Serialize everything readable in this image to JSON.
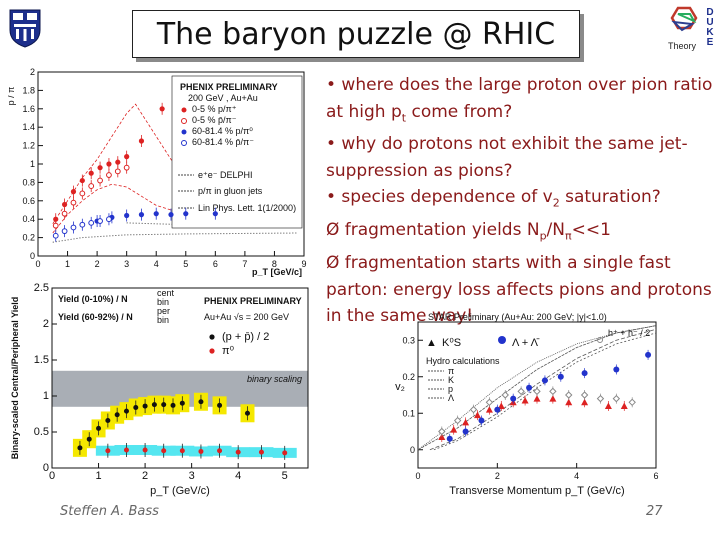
{
  "slide": {
    "title": "The baryon puzzle @ RHIC",
    "author": "Steffen A. Bass",
    "page": "27",
    "duke_letters": [
      "D",
      "U",
      "K",
      "E"
    ],
    "theory_label": "Theory"
  },
  "bullets": [
    {
      "marker": "•",
      "pre": " where does the large proton over pion ratio at high p",
      "sub": "t",
      "post": " come from?"
    },
    {
      "marker": "•",
      "pre": " why do protons not exhibit the same jet- suppression as pions?",
      "sub": "",
      "post": ""
    },
    {
      "marker": "•",
      "pre": " species dependence of v",
      "sub": "2",
      "post": " saturation?"
    },
    {
      "marker": "Ø",
      "pre": " fragmentation yields N",
      "sub": "p",
      "post": "/N",
      "sub2": "π",
      "post2": "<<1"
    },
    {
      "marker": "Ø",
      "pre": " fragmentation starts with a single fast parton: energy loss affects pions and protons in the same way!",
      "sub": "",
      "post": ""
    }
  ],
  "colors": {
    "bullet_text": "#8a1a1a",
    "red": "#dd2222",
    "blue": "#2233cc",
    "yellow": "#f5e800",
    "cyan": "#55e6f0",
    "grey_band": "#a9aeb5"
  },
  "chart_data": [
    {
      "type": "scatter",
      "ylabel": "p / π",
      "xlabel": "p_T [GeV/c]",
      "xlim": [
        0,
        9
      ],
      "ylim": [
        0,
        2
      ],
      "xticks": [
        "0",
        "1",
        "2",
        "3",
        "4",
        "5",
        "6",
        "7",
        "8",
        "9"
      ],
      "yticks": [
        "0",
        "0.2",
        "0.4",
        "0.6",
        "0.8",
        "1",
        "1.2",
        "1.4",
        "1.6",
        "1.8",
        "2"
      ],
      "legend_title": "PHENIX PRELIMINARY",
      "legend_sub": "200 GeV , Au+Au",
      "series": [
        {
          "name": "0-5 %  p/π⁺",
          "color": "#dd2222",
          "x": [
            0.6,
            0.9,
            1.2,
            1.5,
            1.8,
            2.1,
            2.4,
            2.7,
            3.0,
            3.5,
            4.2
          ],
          "y": [
            0.4,
            0.56,
            0.7,
            0.82,
            0.9,
            0.96,
            1.0,
            1.02,
            1.08,
            1.25,
            1.6
          ]
        },
        {
          "name": "0-5 %  p̄/π⁻",
          "color": "#dd2222",
          "x": [
            0.6,
            0.9,
            1.2,
            1.5,
            1.8,
            2.1,
            2.4,
            2.7,
            3.0
          ],
          "y": [
            0.33,
            0.46,
            0.58,
            0.68,
            0.76,
            0.82,
            0.88,
            0.92,
            0.96
          ]
        },
        {
          "name": "60-81.4 % p/π⁰",
          "color": "#2233cc",
          "x": [
            2.0,
            2.5,
            3.0,
            3.5,
            4.0,
            4.5,
            5.0,
            6.0
          ],
          "y": [
            0.38,
            0.42,
            0.44,
            0.45,
            0.46,
            0.45,
            0.46,
            0.46
          ]
        },
        {
          "name": "60-81.4 % p̄/π⁻",
          "color": "#2233cc",
          "x": [
            0.6,
            0.9,
            1.2,
            1.5,
            1.8,
            2.1,
            2.4
          ],
          "y": [
            0.22,
            0.27,
            0.31,
            0.34,
            0.36,
            0.38,
            0.4
          ]
        }
      ],
      "annotations": [
        "e⁺e⁻ DELPHI",
        "p/π in gluon jets",
        "Lin Phys. Lett. 1(1/2000)"
      ]
    },
    {
      "type": "scatter",
      "ylabel": "Binary-scaled Central/Peripheral Yield",
      "xlabel": "p_T (GeV/c)",
      "xlim": [
        0,
        5.5
      ],
      "ylim": [
        0,
        2.5
      ],
      "xticks": [
        "0",
        "1",
        "2",
        "3",
        "4",
        "5"
      ],
      "yticks": [
        "0",
        "0.5",
        "1",
        "1.5",
        "2",
        "2.5"
      ],
      "legend_lines": [
        "Yield (0-10%) / N",
        "Yield (60-92%) / N"
      ],
      "legend_sup": [
        "cent",
        "per"
      ],
      "legend_sub": "bin",
      "experiment": "PHENIX PRELIMINARY",
      "system": "Au+Au √s = 200 GeV",
      "band_label": "binary scaling",
      "band": [
        0.85,
        1.35
      ],
      "series": [
        {
          "name": "(p + p̄) / 2",
          "color": "#111111",
          "x": [
            0.6,
            0.8,
            1.0,
            1.2,
            1.4,
            1.6,
            1.8,
            2.0,
            2.2,
            2.4,
            2.6,
            2.8,
            3.2,
            3.6,
            4.2
          ],
          "y": [
            0.28,
            0.4,
            0.55,
            0.66,
            0.74,
            0.79,
            0.84,
            0.86,
            0.88,
            0.88,
            0.87,
            0.9,
            0.92,
            0.87,
            0.76
          ]
        },
        {
          "name": "π⁰",
          "color": "#dd2222",
          "x": [
            1.2,
            1.6,
            2.0,
            2.4,
            2.8,
            3.2,
            3.6,
            4.0,
            4.5,
            5.0
          ],
          "y": [
            0.24,
            0.25,
            0.25,
            0.24,
            0.24,
            0.23,
            0.24,
            0.22,
            0.22,
            0.21
          ]
        }
      ]
    },
    {
      "type": "scatter",
      "title": "STAR Preliminary (Au+Au: 200 GeV; |y|<1.0)",
      "ylabel": "v₂",
      "xlabel": "Transverse Momentum p_T (GeV/c)",
      "xlim": [
        0,
        6
      ],
      "ylim": [
        -0.05,
        0.35
      ],
      "xticks": [
        "0",
        "2",
        "4",
        "6"
      ],
      "yticks": [
        "0",
        "0.1",
        "0.2",
        "0.3"
      ],
      "hydro_label": "Hydro calculations",
      "hydro_lines": [
        "π",
        "K",
        "p",
        "Λ"
      ],
      "extra_label": "h⁺ + h⁻ / 2",
      "series": [
        {
          "name": "K⁰S",
          "color": "#dd2222",
          "x": [
            0.6,
            0.9,
            1.2,
            1.5,
            1.8,
            2.1,
            2.4,
            2.7,
            3.0,
            3.4,
            3.8,
            4.2,
            4.8,
            5.2
          ],
          "y": [
            0.035,
            0.055,
            0.075,
            0.095,
            0.11,
            0.12,
            0.13,
            0.135,
            0.14,
            0.14,
            0.13,
            0.13,
            0.12,
            0.12
          ]
        },
        {
          "name": "Λ + Λ̄",
          "color": "#2233cc",
          "x": [
            0.8,
            1.2,
            1.6,
            2.0,
            2.4,
            2.8,
            3.2,
            3.6,
            4.2,
            5.0,
            5.8
          ],
          "y": [
            0.03,
            0.05,
            0.08,
            0.11,
            0.14,
            0.17,
            0.19,
            0.2,
            0.21,
            0.22,
            0.26
          ]
        },
        {
          "name": "h⁺ + h⁻ / 2",
          "color": "#888888",
          "x": [
            0.6,
            1.0,
            1.4,
            1.8,
            2.2,
            2.6,
            3.0,
            3.4,
            3.8,
            4.2,
            4.6,
            5.0,
            5.4
          ],
          "y": [
            0.05,
            0.08,
            0.11,
            0.13,
            0.15,
            0.16,
            0.16,
            0.16,
            0.15,
            0.15,
            0.14,
            0.14,
            0.13
          ]
        }
      ]
    }
  ]
}
